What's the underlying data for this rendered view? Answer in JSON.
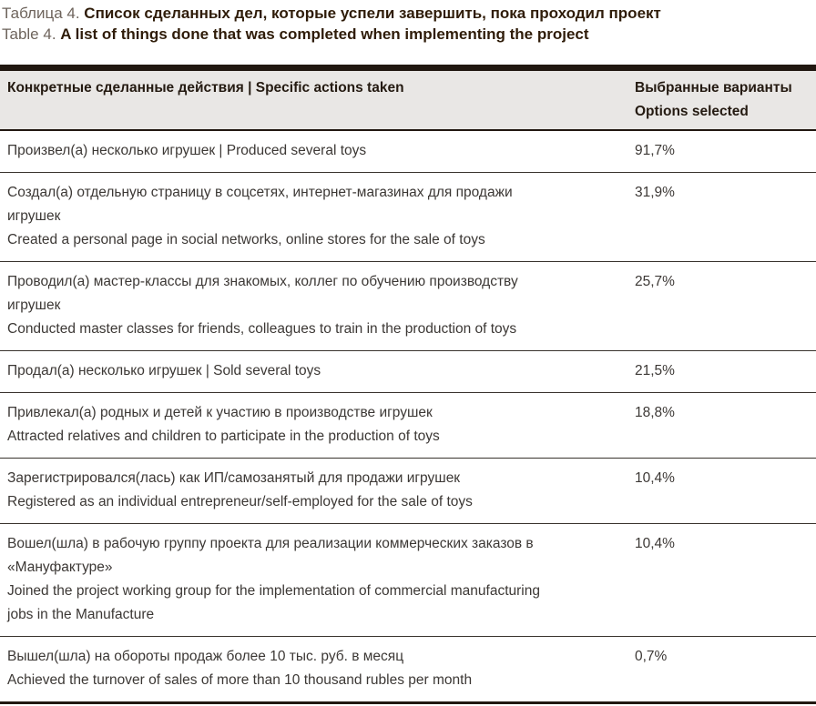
{
  "title": {
    "ru_prefix": "Таблица 4.",
    "ru_bold": "Список сделанных дел, которые успели завершить, пока проходил проект",
    "en_prefix": "Table 4.",
    "en_bold": "A list of things done that was completed when implementing the project"
  },
  "table": {
    "header": {
      "actions_label": "Конкретные сделанные действия  |  Specific actions taken",
      "options_label_ru": "Выбранные варианты",
      "options_label_en": "Options selected"
    },
    "rows": [
      {
        "lines": [
          "Произвел(а) несколько игрушек  |  Produced several toys"
        ],
        "value": "91,7%"
      },
      {
        "lines": [
          "Создал(а) отдельную страницу в соцсетях, интернет-магазинах для продажи",
          "игрушек",
          "Created a personal page in social networks, online stores for the sale of toys"
        ],
        "value": "31,9%"
      },
      {
        "lines": [
          "Проводил(а) мастер-классы для знакомых, коллег по обучению производству",
          "игрушек",
          "Conducted master classes for friends, colleagues to train in the production of toys"
        ],
        "value": "25,7%"
      },
      {
        "lines": [
          "Продал(а) несколько игрушек  |  Sold several toys"
        ],
        "value": "21,5%"
      },
      {
        "lines": [
          "Привлекал(а) родных и детей к участию в производстве игрушек",
          "Attracted relatives and children to participate in the production of toys"
        ],
        "value": "18,8%"
      },
      {
        "lines": [
          "Зарегистрировался(лась) как ИП/самозанятый для продажи игрушек",
          "Registered as an individual entrepreneur/self-employed for the sale of toys"
        ],
        "value": "10,4%"
      },
      {
        "lines": [
          "Вошел(шла) в рабочую группу проекта для реализации коммерческих заказов в",
          "«Мануфактуре»",
          "Joined the project working group for the implementation of commercial manufacturing",
          "jobs in the Manufacture"
        ],
        "value": "10,4%"
      },
      {
        "lines": [
          "Вышел(шла) на обороты продаж более 10 тыс. руб. в месяц",
          "Achieved the turnover of sales of more than 10 thousand rubles per month"
        ],
        "value": "0,7%"
      }
    ],
    "colors": {
      "rule_dark": "#211811",
      "header_bg": "#e9e7e5",
      "body_text": "#3c3835",
      "title_bold": "#2f1c09"
    }
  }
}
